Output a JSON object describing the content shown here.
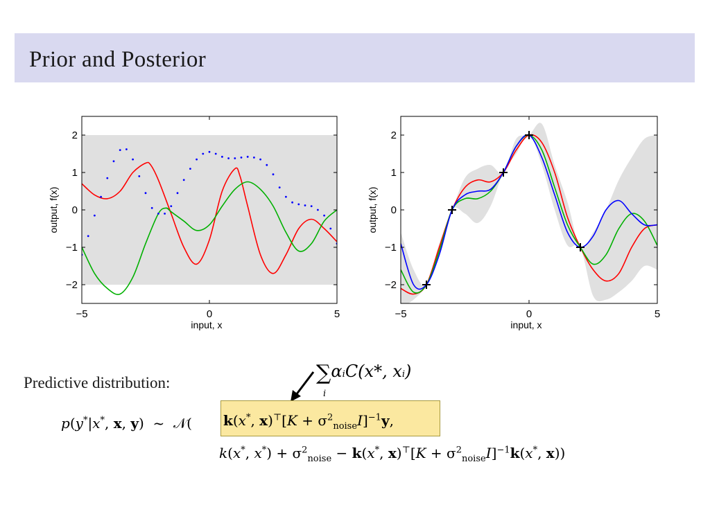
{
  "slide": {
    "title": "Prior and Posterior",
    "predictive_label": "Predictive distribution:",
    "annotation_sum": "∑ α_i C(x*, x_i)",
    "annotation_sum_symbol": "∑",
    "annotation_sum_index": "i",
    "annotation_sum_body_a": "α",
    "annotation_sum_body_i": "i",
    "annotation_sum_body_c": "C(x*, x",
    "annotation_sum_body_end": ")",
    "equation_lhs": "p(y*|x*, x, y)  ~  𝒩(",
    "equation_mean": "k(x*, x)ᵀ [K + σ²noise I]⁻¹ y,",
    "equation_variance": "k(x*, x*) + σ²noise − k(x*, x)ᵀ [K + σ²noise I]⁻¹ k(x*, x))",
    "colors": {
      "title_bar": "#d9d9f0",
      "highlight": "#fbe8a0",
      "band": "#e0e0e0",
      "red": "#ff0000",
      "green": "#00b000",
      "blue": "#0000ff"
    }
  },
  "chart_data": [
    {
      "type": "line",
      "panel": "prior",
      "xlabel": "input, x",
      "ylabel": "output, f(x)",
      "xlim": [
        -5,
        5
      ],
      "ylim": [
        -2.5,
        2.5
      ],
      "xticks": [
        "−5",
        "0",
        "5"
      ],
      "yticks": [
        "−2",
        "−1",
        "0",
        "1",
        "2"
      ],
      "band": {
        "x": [
          -5,
          5
        ],
        "lower": [
          -2,
          -2
        ],
        "upper": [
          2,
          2
        ]
      },
      "series": [
        {
          "color": "red",
          "style": "solid",
          "x": [
            -5,
            -4.5,
            -4,
            -3.5,
            -3,
            -2.5,
            -2.3,
            -2,
            -1.5,
            -1,
            -0.5,
            0,
            0.5,
            1,
            1.2,
            1.5,
            2,
            2.5,
            3,
            3.5,
            4,
            4.5,
            5
          ],
          "y": [
            0.7,
            0.4,
            0.3,
            0.5,
            1.0,
            1.25,
            1.2,
            0.8,
            -0.1,
            -1.0,
            -1.45,
            -0.8,
            0.5,
            1.1,
            0.9,
            0.1,
            -1.2,
            -1.7,
            -1.2,
            -0.5,
            -0.25,
            -0.5,
            -0.85
          ]
        },
        {
          "color": "green",
          "style": "solid",
          "x": [
            -5,
            -4.5,
            -4,
            -3.5,
            -3,
            -2.5,
            -2,
            -1.7,
            -1.5,
            -1,
            -0.5,
            0,
            0.5,
            1,
            1.5,
            2,
            2.5,
            3,
            3.5,
            4,
            4.5,
            5
          ],
          "y": [
            -1.0,
            -1.7,
            -2.1,
            -2.25,
            -1.8,
            -0.9,
            -0.1,
            0.05,
            -0.05,
            -0.3,
            -0.55,
            -0.4,
            0.1,
            0.55,
            0.75,
            0.55,
            0.1,
            -0.6,
            -1.1,
            -0.9,
            -0.3,
            0.0
          ]
        },
        {
          "color": "blue",
          "style": "dotted",
          "x": [
            -5,
            -4.75,
            -4.5,
            -4.25,
            -4,
            -3.75,
            -3.5,
            -3.25,
            -3,
            -2.75,
            -2.5,
            -2.25,
            -2,
            -1.75,
            -1.5,
            -1.25,
            -1,
            -0.75,
            -0.5,
            -0.25,
            0,
            0.25,
            0.5,
            0.75,
            1,
            1.25,
            1.5,
            1.75,
            2,
            2.25,
            2.5,
            2.75,
            3,
            3.25,
            3.5,
            3.75,
            4,
            4.25,
            4.5,
            4.75,
            5
          ],
          "y": [
            -1.2,
            -0.7,
            -0.15,
            0.35,
            0.85,
            1.3,
            1.6,
            1.62,
            1.35,
            0.9,
            0.45,
            0.05,
            -0.1,
            -0.1,
            0.1,
            0.45,
            0.8,
            1.1,
            1.35,
            1.5,
            1.55,
            1.5,
            1.42,
            1.38,
            1.38,
            1.4,
            1.42,
            1.4,
            1.35,
            1.2,
            0.95,
            0.6,
            0.35,
            0.2,
            0.15,
            0.12,
            0.1,
            0.0,
            -0.15,
            -0.5,
            -0.9
          ]
        }
      ]
    },
    {
      "type": "line",
      "panel": "posterior",
      "xlabel": "input, x",
      "ylabel": "output, f(x)",
      "xlim": [
        -5,
        5
      ],
      "ylim": [
        -2.5,
        2.5
      ],
      "xticks": [
        "−5",
        "0",
        "5"
      ],
      "yticks": [
        "−2",
        "−1",
        "0",
        "1",
        "2"
      ],
      "observations": {
        "x": [
          -4,
          -3,
          -1,
          0,
          2
        ],
        "y": [
          -2,
          0,
          1,
          2,
          -1
        ]
      },
      "band": {
        "x": [
          -5,
          -4.5,
          -4,
          -3.5,
          -3,
          -2.5,
          -2,
          -1.5,
          -1,
          -0.5,
          0,
          0.5,
          1,
          1.5,
          2,
          2.5,
          3,
          3.5,
          4,
          4.5,
          5
        ],
        "lower": [
          -2.6,
          -2.4,
          -2.0,
          -1.1,
          0.0,
          -0.1,
          -0.35,
          0.1,
          1.0,
          1.5,
          2.0,
          1.2,
          0.0,
          -0.95,
          -1.0,
          -2.3,
          -2.4,
          -2.2,
          -1.9,
          -1.5,
          -1.6
        ],
        "upper": [
          -0.6,
          -1.6,
          -2.0,
          -0.9,
          0.0,
          0.85,
          1.1,
          1.2,
          1.0,
          1.9,
          2.0,
          2.3,
          1.2,
          0.2,
          -1.0,
          -0.6,
          0.0,
          0.8,
          1.4,
          1.9,
          2.0
        ]
      },
      "series": [
        {
          "color": "red",
          "style": "solid",
          "x": [
            -5,
            -4.5,
            -4,
            -3.5,
            -3,
            -2.5,
            -2,
            -1.5,
            -1,
            -0.5,
            0,
            0.5,
            1,
            1.5,
            2,
            2.5,
            3,
            3.5,
            4,
            4.5,
            5
          ],
          "y": [
            -2.1,
            -2.25,
            -2.0,
            -1.0,
            0.0,
            0.6,
            0.8,
            0.75,
            1.0,
            1.6,
            2.0,
            1.8,
            1.0,
            -0.2,
            -1.0,
            -1.6,
            -1.9,
            -1.7,
            -1.0,
            -0.5,
            -0.4
          ]
        },
        {
          "color": "green",
          "style": "solid",
          "x": [
            -5,
            -4.5,
            -4,
            -3.5,
            -3,
            -2.5,
            -2,
            -1.5,
            -1,
            -0.5,
            0,
            0.5,
            1,
            1.5,
            2,
            2.5,
            3,
            3.5,
            4,
            4.5,
            5
          ],
          "y": [
            -1.6,
            -2.2,
            -2.0,
            -1.1,
            0.0,
            0.3,
            0.3,
            0.5,
            1.0,
            1.7,
            2.0,
            1.6,
            0.6,
            -0.4,
            -1.0,
            -1.45,
            -1.2,
            -0.5,
            -0.1,
            -0.3,
            -0.95
          ]
        },
        {
          "color": "blue",
          "style": "solid",
          "x": [
            -5,
            -4.5,
            -4,
            -3.5,
            -3,
            -2.5,
            -2,
            -1.5,
            -1,
            -0.5,
            0,
            0.5,
            1,
            1.5,
            2,
            2.5,
            3,
            3.5,
            4,
            4.5,
            5
          ],
          "y": [
            -0.9,
            -2.0,
            -2.0,
            -1.2,
            0.0,
            0.4,
            0.5,
            0.55,
            1.0,
            1.7,
            2.0,
            1.4,
            0.4,
            -0.6,
            -1.0,
            -0.7,
            0.0,
            0.25,
            -0.1,
            -0.4,
            -0.4
          ]
        }
      ]
    }
  ]
}
